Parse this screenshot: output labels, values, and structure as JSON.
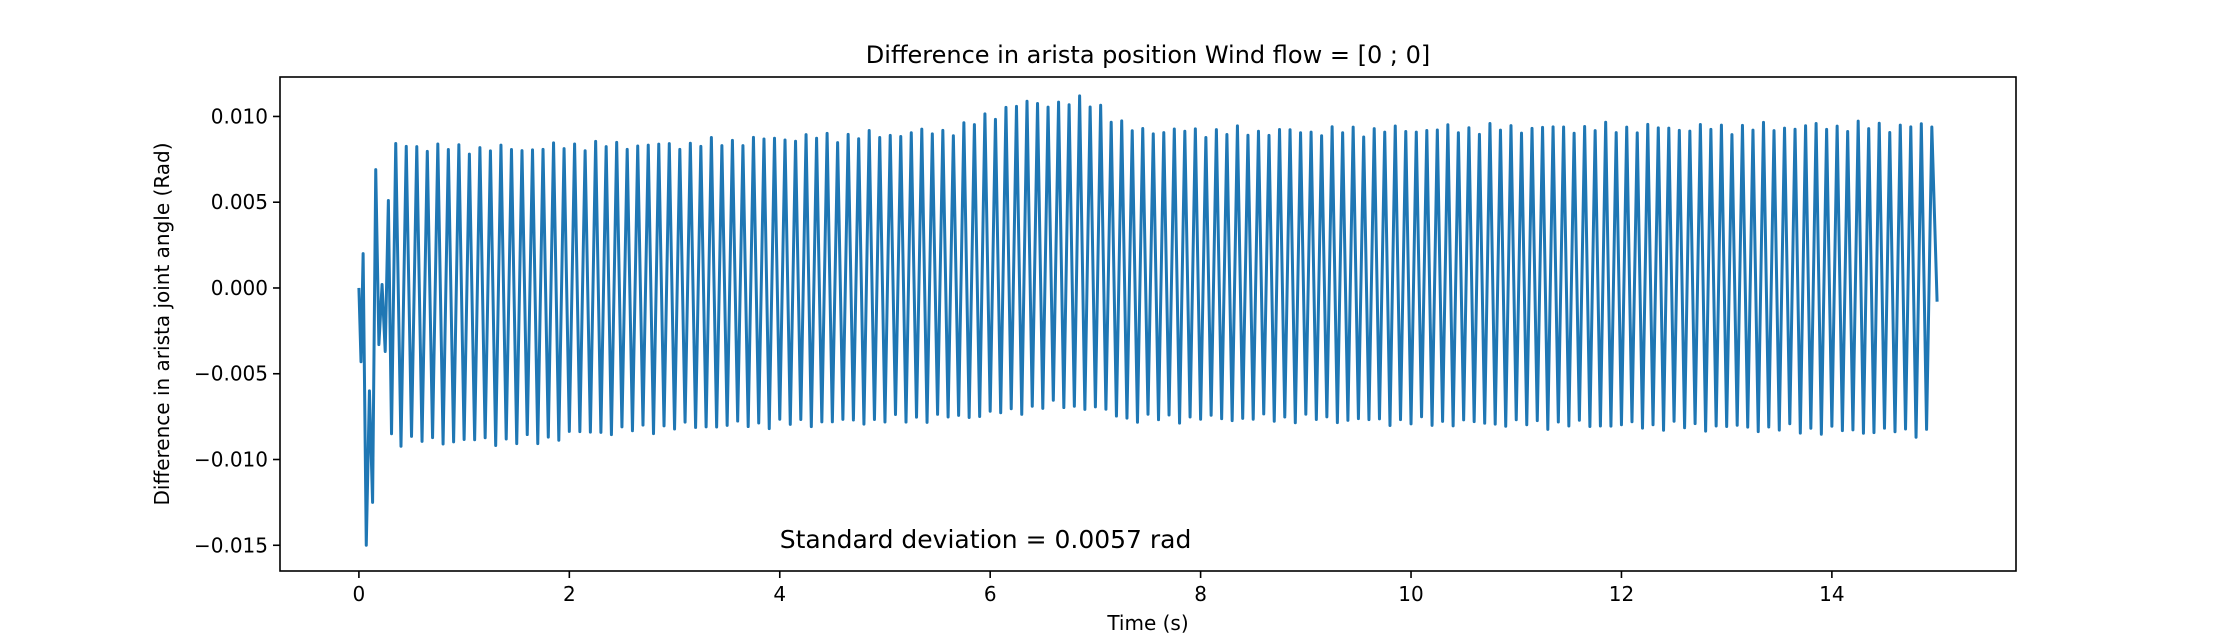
{
  "chart_data": {
    "type": "line",
    "title": "Difference in arista position Wind flow = [0 ; 0]",
    "xlabel": "Time (s)",
    "ylabel": "Difference in arista joint angle (Rad)",
    "xlim": [
      -0.75,
      15.75
    ],
    "ylim": [
      -0.0165,
      0.0123
    ],
    "xticks": [
      0,
      2,
      4,
      6,
      8,
      10,
      12,
      14
    ],
    "xtick_labels": [
      "0",
      "2",
      "4",
      "6",
      "8",
      "10",
      "12",
      "14"
    ],
    "yticks": [
      -0.015,
      -0.01,
      -0.005,
      0.0,
      0.005,
      0.01
    ],
    "ytick_labels": [
      "−0.015",
      "−0.010",
      "−0.005",
      "0.000",
      "0.005",
      "0.010"
    ],
    "grid": false,
    "annotation": {
      "text": "Standard deviation = 0.0057 rad",
      "x": 4.0,
      "y": -0.0147
    },
    "series": [
      {
        "color": "#1f77b4",
        "oscillation_period_s": 0.1,
        "t_start": 0.0,
        "t_end": 15.0,
        "initial_transient": [
          [
            0.0,
            0.0
          ],
          [
            0.02,
            -0.0043
          ],
          [
            0.04,
            0.002
          ],
          [
            0.07,
            -0.015
          ],
          [
            0.1,
            -0.006
          ],
          [
            0.13,
            -0.0125
          ],
          [
            0.16,
            0.0069
          ],
          [
            0.19,
            -0.0033
          ],
          [
            0.22,
            0.0002
          ],
          [
            0.25,
            -0.0037
          ],
          [
            0.28,
            0.0051
          ],
          [
            0.31,
            -0.0085
          ]
        ],
        "envelope": [
          {
            "t": 0.35,
            "max": 0.0083,
            "min": -0.0089
          },
          {
            "t": 1.0,
            "max": 0.0081,
            "min": -0.0089
          },
          {
            "t": 1.7,
            "max": 0.0081,
            "min": -0.0089
          },
          {
            "t": 2.0,
            "max": 0.0083,
            "min": -0.0085
          },
          {
            "t": 3.0,
            "max": 0.0083,
            "min": -0.0081
          },
          {
            "t": 4.0,
            "max": 0.0087,
            "min": -0.0079
          },
          {
            "t": 5.0,
            "max": 0.0089,
            "min": -0.0077
          },
          {
            "t": 5.7,
            "max": 0.0092,
            "min": -0.0075
          },
          {
            "t": 6.2,
            "max": 0.0106,
            "min": -0.0072
          },
          {
            "t": 6.6,
            "max": 0.0108,
            "min": -0.0068
          },
          {
            "t": 7.0,
            "max": 0.0108,
            "min": -0.007
          },
          {
            "t": 7.3,
            "max": 0.0092,
            "min": -0.0076
          },
          {
            "t": 8.0,
            "max": 0.0091,
            "min": -0.0076
          },
          {
            "t": 9.0,
            "max": 0.0091,
            "min": -0.0076
          },
          {
            "t": 10.0,
            "max": 0.0092,
            "min": -0.0078
          },
          {
            "t": 11.0,
            "max": 0.0093,
            "min": -0.0079
          },
          {
            "t": 12.0,
            "max": 0.0093,
            "min": -0.008
          },
          {
            "t": 13.0,
            "max": 0.0093,
            "min": -0.0081
          },
          {
            "t": 14.0,
            "max": 0.0094,
            "min": -0.0083
          },
          {
            "t": 14.98,
            "max": 0.0094,
            "min": -0.0084
          }
        ],
        "final_point": [
          15.0,
          -0.0008
        ]
      }
    ]
  }
}
